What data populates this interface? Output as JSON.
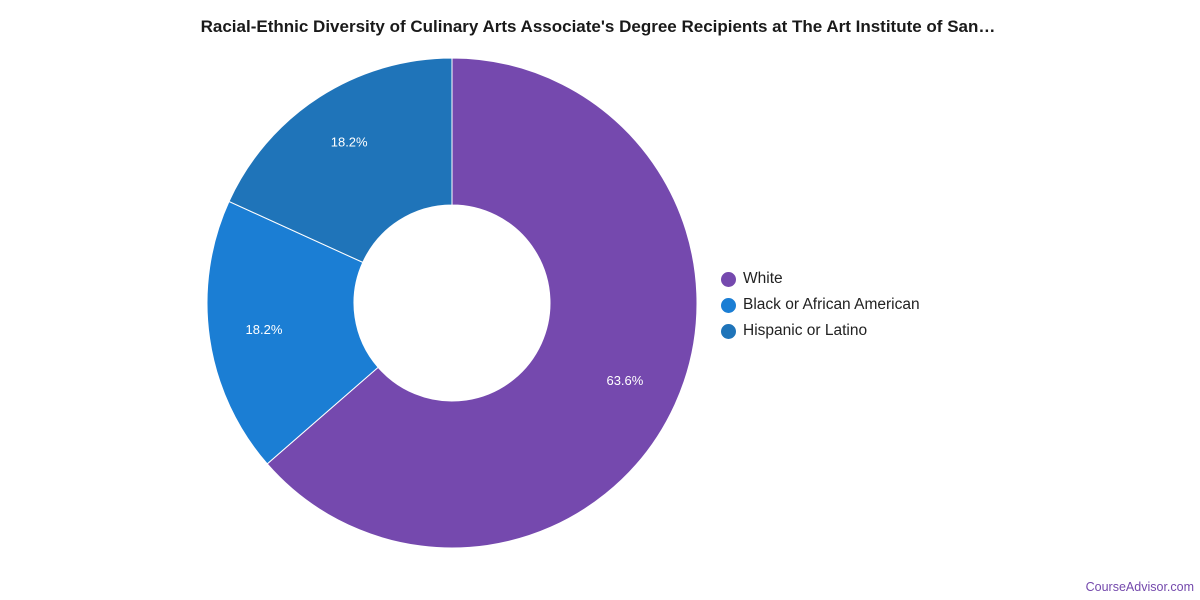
{
  "chart_data": {
    "type": "pie",
    "title": "Racial-Ethnic Diversity of Culinary Arts Associate's Degree Recipients at The Art Institute of San…",
    "slices": [
      {
        "label": "White",
        "value": 63.6,
        "value_label": "63.6%",
        "color": "#7549ae"
      },
      {
        "label": "Black or African American",
        "value": 18.2,
        "value_label": "18.2%",
        "color": "#1b7ed4"
      },
      {
        "label": "Hispanic or Latino",
        "value": 18.2,
        "value_label": "18.2%",
        "color": "#1f74b9"
      }
    ],
    "donut": true,
    "legend_position": "right"
  },
  "footer": {
    "attribution": "CourseAdvisor.com"
  }
}
